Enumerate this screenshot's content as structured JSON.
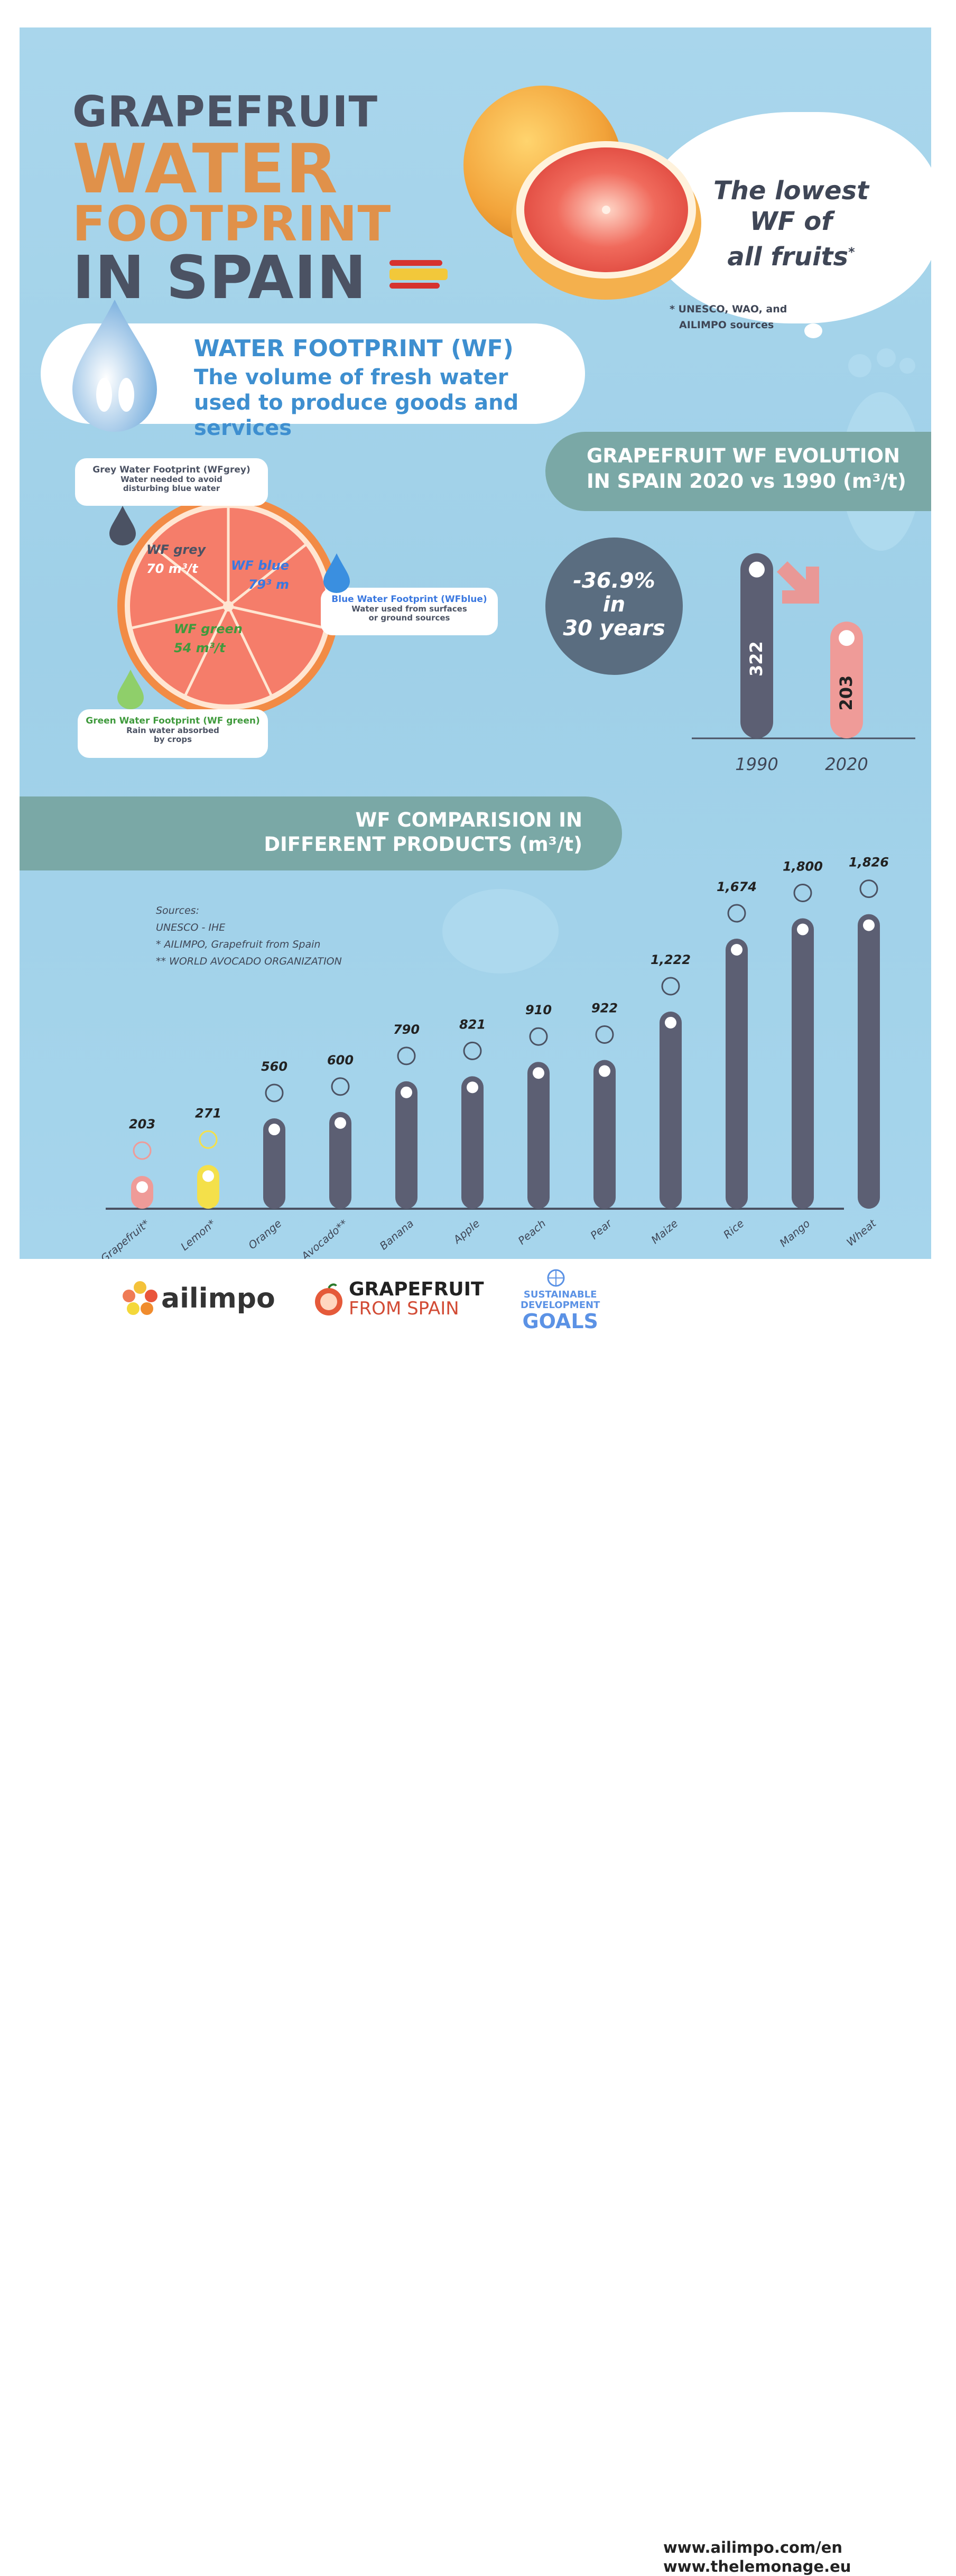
{
  "title": {
    "line1": "GRAPEFRUIT",
    "line2": "WATER",
    "line3": "FOOTPRINT",
    "line4": "IN SPAIN"
  },
  "tagline": {
    "line1": "The lowest",
    "line2": "WF of",
    "line3": "all fruits",
    "mark": "*"
  },
  "sources_note": {
    "line1": "* UNESCO, WAO, and",
    "line2": "AILIMPO sources"
  },
  "definition": {
    "heading": "WATER FOOTPRINT (WF)",
    "text": "The volume of fresh water used to produce goods and services"
  },
  "composition": {
    "grey": {
      "callout_title": "Grey Water Footprint (WFgrey)",
      "callout_desc": "Water needed to avoid disturbing blue water",
      "label": "WF grey",
      "value": "70 m³/t",
      "color": "#4b5263"
    },
    "blue": {
      "callout_title": "Blue Water Footprint (WFblue)",
      "callout_desc": "Water used from surfaces or ground sources",
      "label": "WF blue",
      "value": "79³ m",
      "color": "#3a78e0"
    },
    "green": {
      "callout_title": "Green Water Footprint (WF green)",
      "callout_desc": "Rain water absorbed by crops",
      "label": "WF green",
      "value": "54 m³/t",
      "color": "#3f9a3c"
    }
  },
  "evolution": {
    "heading_line1": "GRAPEFRUIT WF EVOLUTION",
    "heading_line2": "IN SPAIN 2020 vs 1990 (m³/t)",
    "change": {
      "pct": "-36.9%",
      "in": "in",
      "period": "30 years"
    }
  },
  "comparison": {
    "heading_line1": "WF COMPARISION IN",
    "heading_line2": "DIFFERENT PRODUCTS (m³/t)"
  },
  "sources": {
    "label": "Sources:",
    "s1": "UNESCO - IHE",
    "s2": "* AILIMPO, Grapefruit from Spain",
    "s3": "** WORLD AVOCADO ORGANIZATION"
  },
  "footer": {
    "logo1": "ailimpo",
    "logo2_line1": "GRAPEFRUIT",
    "logo2_line2": "FROM SPAIN",
    "sdg_line1": "SUSTAINABLE",
    "sdg_line2": "DEVELOPMENT",
    "sdg_line3": "GOALS",
    "url1": "www.ailimpo.com/en",
    "url2": "www.thelemonage.eu"
  },
  "colors": {
    "grapefruit": "#ef9b98",
    "lemon": "#f4e04a",
    "default_bar": "#5c5f73",
    "banner": "#7aa8a6",
    "orange_title": "#e0914a",
    "dark_title": "#4b5263"
  },
  "chart_data": [
    {
      "type": "bar",
      "categories": [
        "1990",
        "2020"
      ],
      "values": [
        322,
        203
      ],
      "value_labels": [
        "322",
        "203"
      ]
    },
    {
      "type": "bar",
      "categories": [
        "Grapefruit*",
        "Lemon*",
        "Orange",
        "Avocado**",
        "Banana",
        "Apple",
        "Peach",
        "Pear",
        "Maize",
        "Rice",
        "Mango",
        "Wheat"
      ],
      "values": [
        203,
        271,
        560,
        600,
        790,
        821,
        910,
        922,
        1222,
        1674,
        1800,
        1826
      ],
      "value_labels": [
        "203",
        "271",
        "560",
        "600",
        "790",
        "821",
        "910",
        "922",
        "1,222",
        "1,674",
        "1,800",
        "1,826"
      ]
    }
  ]
}
